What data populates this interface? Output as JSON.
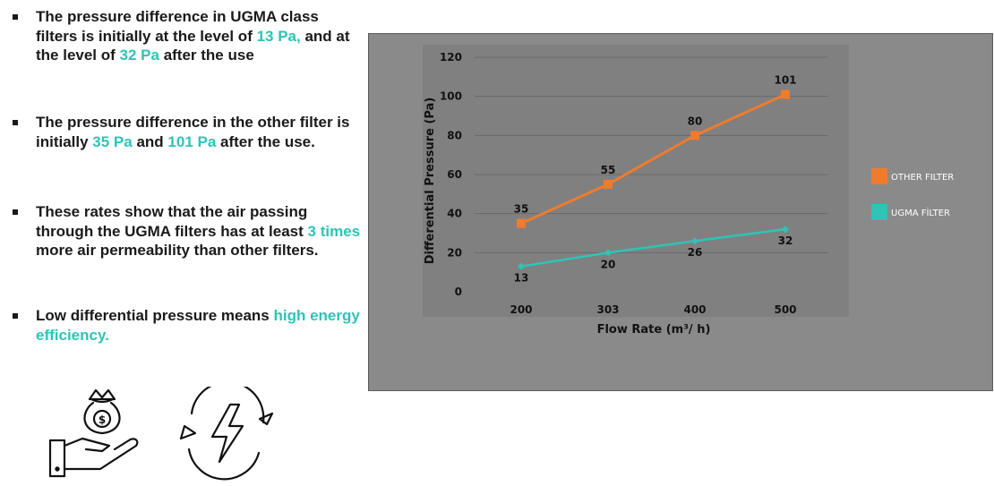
{
  "bullets": [
    {
      "parts": [
        {
          "text": "The pressure difference in UGMA class filters is initially at the level of ",
          "hl": false
        },
        {
          "text": "13 Pa,",
          "hl": true
        },
        {
          "text": " and at the level of ",
          "hl": false
        },
        {
          "text": "32 Pa",
          "hl": true
        },
        {
          "text": " after the use",
          "hl": false
        }
      ]
    },
    {
      "parts": [
        {
          "text": "The pressure difference in the other filter is initially ",
          "hl": false
        },
        {
          "text": "35 Pa",
          "hl": true
        },
        {
          "text": " and ",
          "hl": false
        },
        {
          "text": "101 Pa",
          "hl": true
        },
        {
          "text": " after the use.",
          "hl": false
        }
      ]
    },
    {
      "parts": [
        {
          "text": "These rates show that the air passing through the UGMA filters has at least ",
          "hl": false
        },
        {
          "text": "3 times",
          "hl": true
        },
        {
          "text": " more air permeability than other filters.",
          "hl": false
        }
      ]
    },
    {
      "parts": [
        {
          "text": "Low differential pressure means ",
          "hl": false
        },
        {
          "text": "high energy efficiency.",
          "hl": true
        }
      ]
    }
  ],
  "icons": [
    "money-bag-hand-icon",
    "energy-cycle-icon"
  ],
  "colors": {
    "accent": "#2ec4b6",
    "other": "#f07b2c",
    "ugma": "#2ec4b6",
    "panel": "#8a8a8a"
  },
  "chart_data": {
    "type": "line",
    "categories": [
      "200",
      "303",
      "400",
      "500"
    ],
    "series": [
      {
        "name": "OTHER FILTER",
        "values": [
          35,
          55,
          80,
          101
        ],
        "color": "#f07b2c",
        "marker": "square"
      },
      {
        "name": "UGMA FİLTER",
        "values": [
          13,
          20,
          26,
          32
        ],
        "color": "#2ec4b6",
        "marker": "diamond"
      }
    ],
    "xlabel": "Flow Rate (m³/ h)",
    "ylabel": "Differential Pressure (Pa)",
    "ylim": [
      0,
      120
    ],
    "yticks": [
      0,
      20,
      40,
      60,
      80,
      100,
      120
    ],
    "grid": true,
    "legend": "right"
  }
}
